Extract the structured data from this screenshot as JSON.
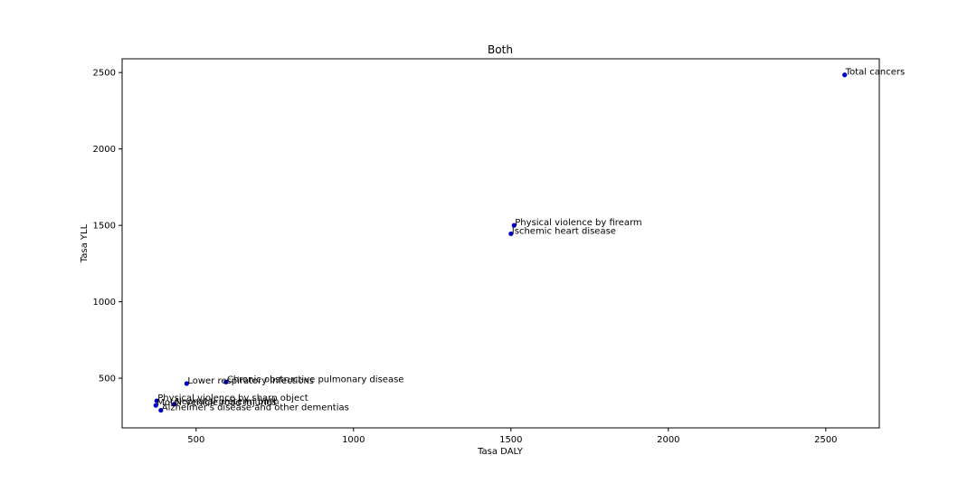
{
  "chart_data": {
    "type": "scatter",
    "title": "Both",
    "xlabel": "Tasa DALY",
    "ylabel": "Tasa YLL",
    "xlim": [
      265,
      2670
    ],
    "ylim": [
      175,
      2590
    ],
    "xticks": [
      500,
      1000,
      1500,
      2000,
      2500
    ],
    "yticks": [
      500,
      1000,
      1500,
      2000,
      2500
    ],
    "grid": false,
    "marker_color": "#0000cc",
    "points": [
      {
        "label": "Total cancers",
        "x": 2560,
        "y": 2485
      },
      {
        "label": "Physical violence by firearm",
        "x": 1510,
        "y": 1500
      },
      {
        "label": "Ischemic heart disease",
        "x": 1500,
        "y": 1445
      },
      {
        "label": "Chronic obstructive pulmonary disease",
        "x": 595,
        "y": 475
      },
      {
        "label": "Lower respiratory infections",
        "x": 470,
        "y": 465
      },
      {
        "label": "Physical violence by sharp object",
        "x": 375,
        "y": 352
      },
      {
        "label": "Neonatal preterm birth",
        "x": 430,
        "y": 330
      },
      {
        "label": "Motor vehicle road injuries",
        "x": 372,
        "y": 322
      },
      {
        "label": "Alzheimer's disease and other dementias",
        "x": 388,
        "y": 290
      }
    ]
  }
}
